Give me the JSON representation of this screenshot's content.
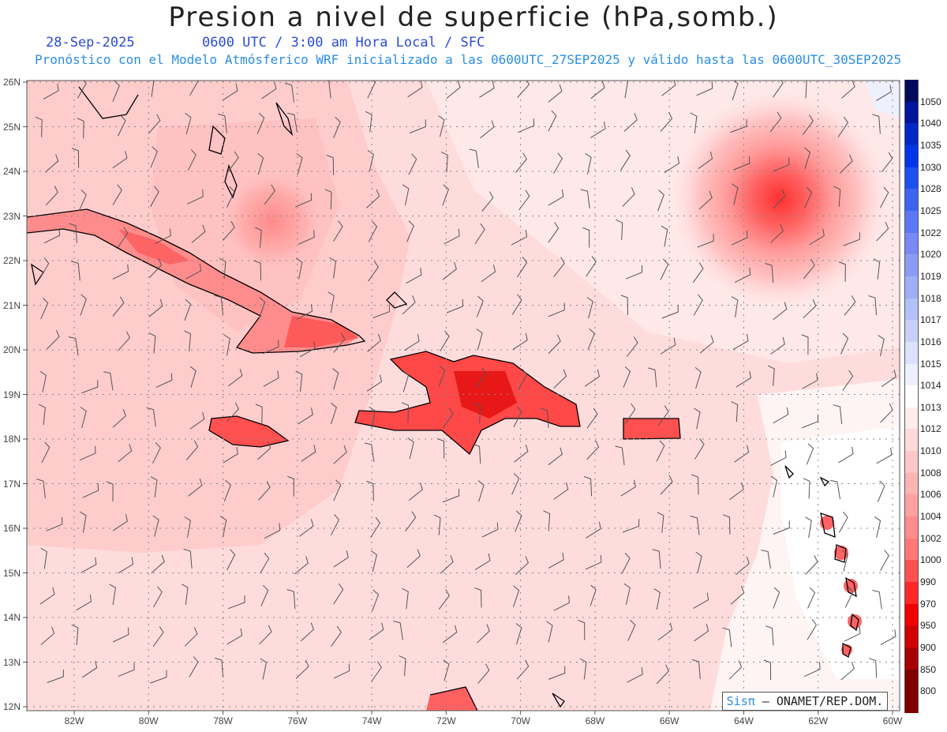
{
  "title": "Presion a nivel de superficie (hPa,somb.)",
  "date": "28-Sep-2025",
  "time_info": "0600 UTC / 3:00 am Hora Local / SFC",
  "forecast_info": "Pronóstico con el Modelo Atmósferico WRF inicializado a las 0600UTC_27SEP2025 y válido hasta las  0600UTC_30SEP2025",
  "credit": {
    "sis": "Sisπ",
    "rest": " – ONAMET/REP.DOM."
  },
  "lat_labels": [
    "26N",
    "25N",
    "24N",
    "23N",
    "22N",
    "21N",
    "20N",
    "19N",
    "18N",
    "17N",
    "16N",
    "15N",
    "14N",
    "13N",
    "12N"
  ],
  "lon_labels": [
    "82W",
    "80W",
    "78W",
    "76W",
    "74W",
    "72W",
    "70W",
    "68W",
    "66W",
    "64W",
    "62W",
    "60W"
  ],
  "colorbar": {
    "levels": [
      "1050",
      "1040",
      "1035",
      "1030",
      "1028",
      "1025",
      "1022",
      "1020",
      "1019",
      "1018",
      "1017",
      "1016",
      "1015",
      "1014",
      "1013",
      "1012",
      "1010",
      "1008",
      "1006",
      "1004",
      "1002",
      "1000",
      "990",
      "970",
      "950",
      "900",
      "850",
      "800"
    ],
    "colors": [
      "#000a5c",
      "#00149c",
      "#0028c8",
      "#0036e8",
      "#1e50f0",
      "#3c64f0",
      "#5a78f4",
      "#7888f4",
      "#8c9cf4",
      "#a0aef6",
      "#b4c0f8",
      "#c8d0fa",
      "#dce2fc",
      "#eef0fe",
      "#ffffff",
      "#ffecec",
      "#ffdada",
      "#ffc8c8",
      "#ffb4b4",
      "#ffa0a0",
      "#ff8c8c",
      "#ff7878",
      "#ff5050",
      "#ff2828",
      "#f00000",
      "#d00000",
      "#a80000",
      "#800000"
    ]
  }
}
